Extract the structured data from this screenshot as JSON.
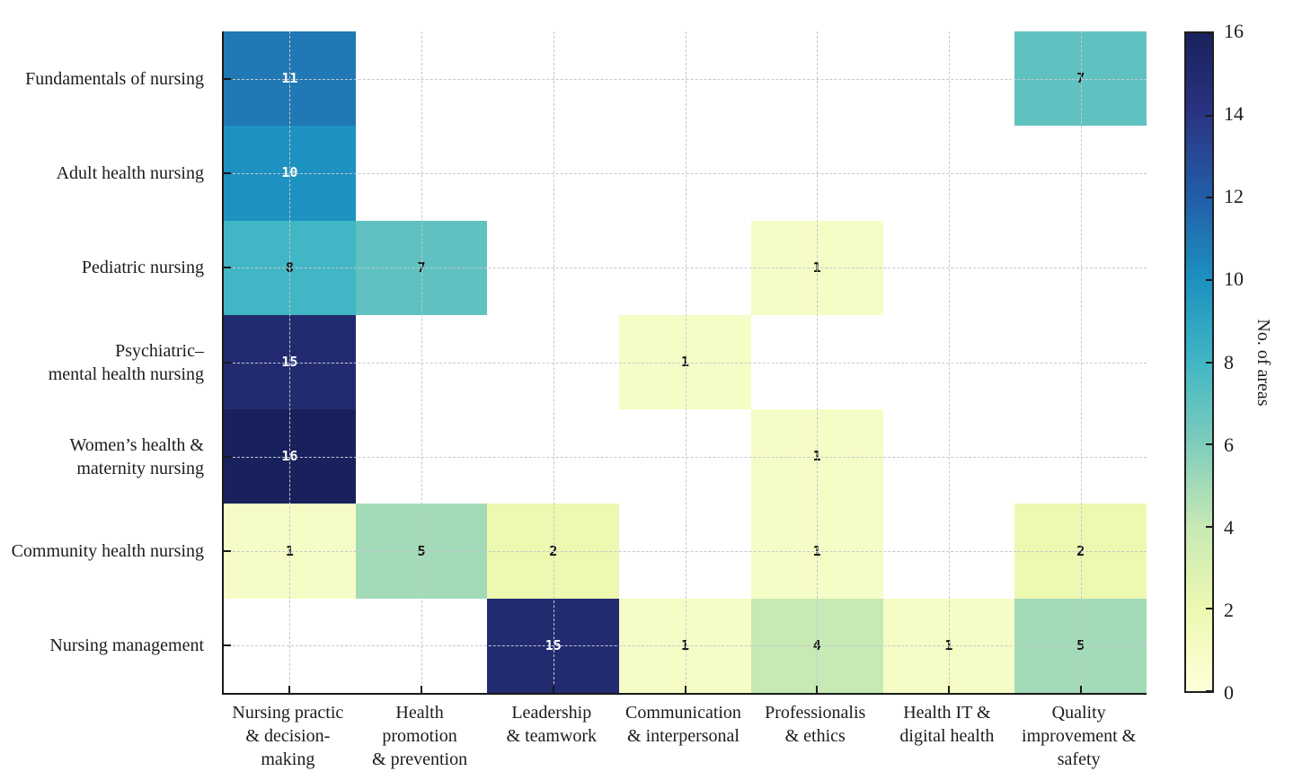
{
  "chart_data": {
    "type": "heatmap",
    "title": "",
    "rows": [
      [
        "Fundamentals of nursing"
      ],
      [
        "Adult health nursing"
      ],
      [
        "Pediatric nursing"
      ],
      [
        "Psychiatric–",
        "mental health nursing"
      ],
      [
        "Women’s health &",
        "maternity nursing"
      ],
      [
        "Community health nursing"
      ],
      [
        "Nursing management"
      ]
    ],
    "columns": [
      [
        "Nursing practic",
        "& decision-",
        "making"
      ],
      [
        "Health",
        "promotion",
        "& prevention"
      ],
      [
        "Leadership",
        "& teamwork"
      ],
      [
        "Communication",
        "& interpersonal"
      ],
      [
        "Professionalis",
        "& ethics"
      ],
      [
        "Health IT &",
        "digital health"
      ],
      [
        "Quality",
        "improvement &",
        "safety"
      ]
    ],
    "values": [
      [
        11,
        null,
        null,
        null,
        null,
        null,
        7
      ],
      [
        10,
        null,
        null,
        null,
        null,
        null,
        null
      ],
      [
        8,
        7,
        null,
        null,
        1,
        null,
        null
      ],
      [
        15,
        null,
        null,
        1,
        null,
        null,
        null
      ],
      [
        16,
        null,
        null,
        null,
        1,
        null,
        null
      ],
      [
        1,
        5,
        2,
        null,
        1,
        null,
        2
      ],
      [
        null,
        null,
        15,
        1,
        4,
        1,
        5
      ]
    ],
    "vmin": 0,
    "vmax": 16,
    "grid": true,
    "legend_position": "right",
    "colormap_stops": [
      {
        "t": 0.0,
        "color": "#ffffd9"
      },
      {
        "t": 0.125,
        "color": "#edf8b1"
      },
      {
        "t": 0.25,
        "color": "#c7e9b4"
      },
      {
        "t": 0.375,
        "color": "#7fcdbb"
      },
      {
        "t": 0.5,
        "color": "#41b6c4"
      },
      {
        "t": 0.625,
        "color": "#1d91c0"
      },
      {
        "t": 0.75,
        "color": "#225ea8"
      },
      {
        "t": 0.875,
        "color": "#2b3484"
      },
      {
        "t": 1.0,
        "color": "#19215c"
      }
    ],
    "colorbar": {
      "label": "No. of areas",
      "ticks": [
        0,
        2,
        4,
        6,
        8,
        10,
        12,
        14,
        16
      ]
    },
    "colors": {
      "axis": "#1a1a1a",
      "gridline": "#c3c9ce",
      "cell_text_dark": "#101010",
      "cell_text_light": "#ffffff",
      "label_text": "#1c1c1c"
    }
  }
}
